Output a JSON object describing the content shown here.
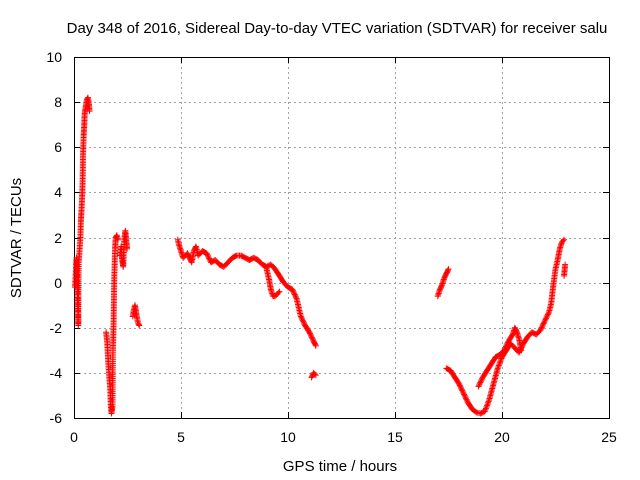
{
  "chart_data": {
    "type": "scatter",
    "title": "Day 348 of 2016, Sidereal Day-to-day VTEC variation (SDTVAR) for receiver salu",
    "xlabel": "GPS time / hours",
    "ylabel": "SDTVAR / TECUs",
    "xlim": [
      0,
      25
    ],
    "ylim": [
      -6,
      10
    ],
    "x_ticks": [
      0,
      5,
      10,
      15,
      20,
      25
    ],
    "y_ticks": [
      -6,
      -4,
      -2,
      0,
      2,
      4,
      6,
      8,
      10
    ],
    "x_tick_labels": [
      "0",
      "5",
      "10",
      "15",
      "20",
      "25"
    ],
    "y_tick_labels": [
      "-6",
      "-4",
      "-2",
      "0",
      "2",
      "4",
      "6",
      "8",
      "10"
    ],
    "grid": true,
    "marker": "+",
    "series": [
      {
        "name": "SDTVAR",
        "color": "#ff0000",
        "segments": [
          [
            [
              0.05,
              -0.2
            ],
            [
              0.08,
              0.3
            ],
            [
              0.1,
              0.8
            ],
            [
              0.12,
              1.1
            ],
            [
              0.15,
              0.5
            ],
            [
              0.18,
              -1.0
            ],
            [
              0.2,
              -1.9
            ],
            [
              0.22,
              0.9
            ],
            [
              0.25,
              1.3
            ],
            [
              0.3,
              2.0
            ],
            [
              0.32,
              2.7
            ],
            [
              0.35,
              3.2
            ],
            [
              0.38,
              3.8
            ],
            [
              0.4,
              4.4
            ],
            [
              0.42,
              5.6
            ],
            [
              0.45,
              6.5
            ],
            [
              0.48,
              7.0
            ],
            [
              0.5,
              7.5
            ],
            [
              0.55,
              7.8
            ],
            [
              0.6,
              8.1
            ],
            [
              0.65,
              8.2
            ],
            [
              0.7,
              7.9
            ],
            [
              0.72,
              7.6
            ]
          ],
          [
            [
              1.5,
              -2.2
            ],
            [
              1.55,
              -2.6
            ],
            [
              1.6,
              -3.5
            ],
            [
              1.65,
              -4.2
            ],
            [
              1.7,
              -4.8
            ],
            [
              1.72,
              -5.4
            ],
            [
              1.75,
              -5.8
            ],
            [
              1.8,
              -5.5
            ],
            [
              1.82,
              -3.0
            ],
            [
              1.85,
              -1.8
            ],
            [
              1.88,
              0.1
            ],
            [
              1.9,
              0.8
            ],
            [
              1.92,
              1.5
            ],
            [
              1.95,
              2.0
            ],
            [
              2.0,
              2.1
            ],
            [
              2.05,
              1.9
            ]
          ],
          [
            [
              2.15,
              1.2
            ],
            [
              2.2,
              1.6
            ],
            [
              2.25,
              1.0
            ],
            [
              2.3,
              0.7
            ],
            [
              2.35,
              1.9
            ],
            [
              2.4,
              2.3
            ],
            [
              2.45,
              1.8
            ],
            [
              2.48,
              1.5
            ]
          ],
          [
            [
              2.75,
              -1.5
            ],
            [
              2.8,
              -1.2
            ],
            [
              2.85,
              -1.0
            ],
            [
              2.9,
              -1.3
            ],
            [
              2.95,
              -1.6
            ],
            [
              3.0,
              -1.8
            ],
            [
              3.05,
              -1.9
            ]
          ],
          [
            [
              4.85,
              1.9
            ],
            [
              4.9,
              1.7
            ],
            [
              5.0,
              1.4
            ],
            [
              5.1,
              1.1
            ],
            [
              5.2,
              1.2
            ],
            [
              5.3,
              1.3
            ],
            [
              5.4,
              1.1
            ],
            [
              5.5,
              0.9
            ],
            [
              5.6,
              1.4
            ],
            [
              5.7,
              1.6
            ],
            [
              5.8,
              1.2
            ],
            [
              6.0,
              1.4
            ],
            [
              6.2,
              1.3
            ],
            [
              6.4,
              0.9
            ],
            [
              6.6,
              1.0
            ],
            [
              6.8,
              0.8
            ],
            [
              7.0,
              0.7
            ],
            [
              7.2,
              0.9
            ],
            [
              7.4,
              1.1
            ],
            [
              7.6,
              1.2
            ],
            [
              7.8,
              1.2
            ],
            [
              8.0,
              1.1
            ],
            [
              8.2,
              1.0
            ],
            [
              8.4,
              1.1
            ],
            [
              8.6,
              1.0
            ],
            [
              8.8,
              0.8
            ],
            [
              9.0,
              0.7
            ],
            [
              9.2,
              0.8
            ],
            [
              9.4,
              0.6
            ],
            [
              9.6,
              0.3
            ],
            [
              9.8,
              0.0
            ],
            [
              10.0,
              -0.2
            ],
            [
              10.2,
              -0.3
            ],
            [
              10.4,
              -0.7
            ],
            [
              10.6,
              -1.5
            ],
            [
              10.8,
              -1.9
            ],
            [
              11.0,
              -2.2
            ],
            [
              11.2,
              -2.6
            ],
            [
              11.3,
              -2.8
            ]
          ],
          [
            [
              9.0,
              0.6
            ],
            [
              9.1,
              0.2
            ],
            [
              9.2,
              -0.3
            ],
            [
              9.3,
              -0.6
            ],
            [
              9.4,
              -0.6
            ],
            [
              9.5,
              -0.5
            ],
            [
              9.6,
              -0.4
            ]
          ],
          [
            [
              11.1,
              -4.2
            ],
            [
              11.2,
              -4.0
            ],
            [
              11.3,
              -4.1
            ]
          ],
          [
            [
              17.0,
              -0.6
            ],
            [
              17.1,
              -0.3
            ],
            [
              17.2,
              -0.1
            ],
            [
              17.3,
              0.2
            ],
            [
              17.4,
              0.4
            ],
            [
              17.5,
              0.6
            ]
          ],
          [
            [
              17.4,
              -3.8
            ],
            [
              17.6,
              -3.9
            ],
            [
              17.8,
              -4.2
            ],
            [
              18.0,
              -4.5
            ],
            [
              18.2,
              -4.9
            ],
            [
              18.4,
              -5.3
            ],
            [
              18.6,
              -5.6
            ],
            [
              18.8,
              -5.75
            ],
            [
              19.0,
              -5.8
            ],
            [
              19.2,
              -5.7
            ],
            [
              19.4,
              -5.2
            ],
            [
              19.6,
              -4.5
            ],
            [
              19.8,
              -3.8
            ],
            [
              20.0,
              -3.3
            ],
            [
              20.2,
              -3.0
            ],
            [
              20.4,
              -2.7
            ],
            [
              20.6,
              -2.9
            ],
            [
              20.8,
              -3.1
            ],
            [
              21.0,
              -2.7
            ],
            [
              21.2,
              -2.4
            ],
            [
              21.4,
              -2.2
            ],
            [
              21.6,
              -2.3
            ],
            [
              21.8,
              -2.1
            ],
            [
              22.0,
              -1.7
            ],
            [
              22.2,
              -1.3
            ],
            [
              22.3,
              -0.9
            ],
            [
              22.4,
              -0.1
            ],
            [
              22.5,
              0.6
            ],
            [
              22.6,
              1.0
            ],
            [
              22.7,
              1.5
            ],
            [
              22.8,
              1.8
            ],
            [
              22.9,
              1.9
            ]
          ],
          [
            [
              18.9,
              -4.6
            ],
            [
              19.1,
              -4.2
            ],
            [
              19.3,
              -3.9
            ],
            [
              19.5,
              -3.6
            ],
            [
              19.7,
              -3.3
            ],
            [
              19.9,
              -3.2
            ],
            [
              20.1,
              -3.0
            ],
            [
              20.3,
              -2.6
            ],
            [
              20.5,
              -2.3
            ],
            [
              20.6,
              -2.0
            ],
            [
              20.7,
              -2.2
            ],
            [
              20.8,
              -2.5
            ],
            [
              20.9,
              -3.0
            ]
          ],
          [
            [
              22.9,
              0.3
            ],
            [
              22.95,
              0.8
            ]
          ]
        ]
      }
    ]
  }
}
